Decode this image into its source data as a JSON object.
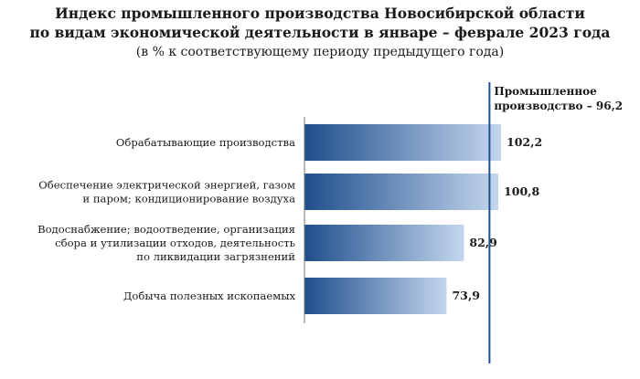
{
  "header": {
    "title_line1": "Индекс промышленного производства Новосибирской области",
    "title_line2": "по видам экономической деятельности в январе – феврале 2023 года",
    "subtitle": "(в % к соответствующему периоду предыдущего года)"
  },
  "colors": {
    "bar_dark": "#1f4f8c",
    "bar_light": "#c4d6ee",
    "axis": "#777777",
    "reference_line": "#1f4f8c"
  },
  "chart_data": {
    "type": "bar",
    "orientation": "horizontal",
    "title": "Индекс промышленного производства Новосибирской области по видам экономической деятельности в январе – феврале 2023 года",
    "subtitle": "(в % к соответствующему периоду предыдущего года)",
    "categories": [
      [
        "Обрабатывающие производства"
      ],
      [
        "Обеспечение электрической энергией, газом",
        "и паром; кондиционирование воздуха"
      ],
      [
        "Водоснабжение; водоотведение, организация",
        "сбора и утилизации отходов, деятельность",
        "по ликвидации загрязнений"
      ],
      [
        "Добыча полезных ископаемых"
      ]
    ],
    "values": [
      102.2,
      100.8,
      82.9,
      73.9
    ],
    "value_labels": [
      "102,2",
      "100,8",
      "82,9",
      "73,9"
    ],
    "xlim": [
      0,
      110
    ],
    "reference": {
      "value": 96.2,
      "label_lines": [
        "Промышленное",
        "производство – 96,2"
      ]
    },
    "grid": false,
    "legend": "none"
  }
}
